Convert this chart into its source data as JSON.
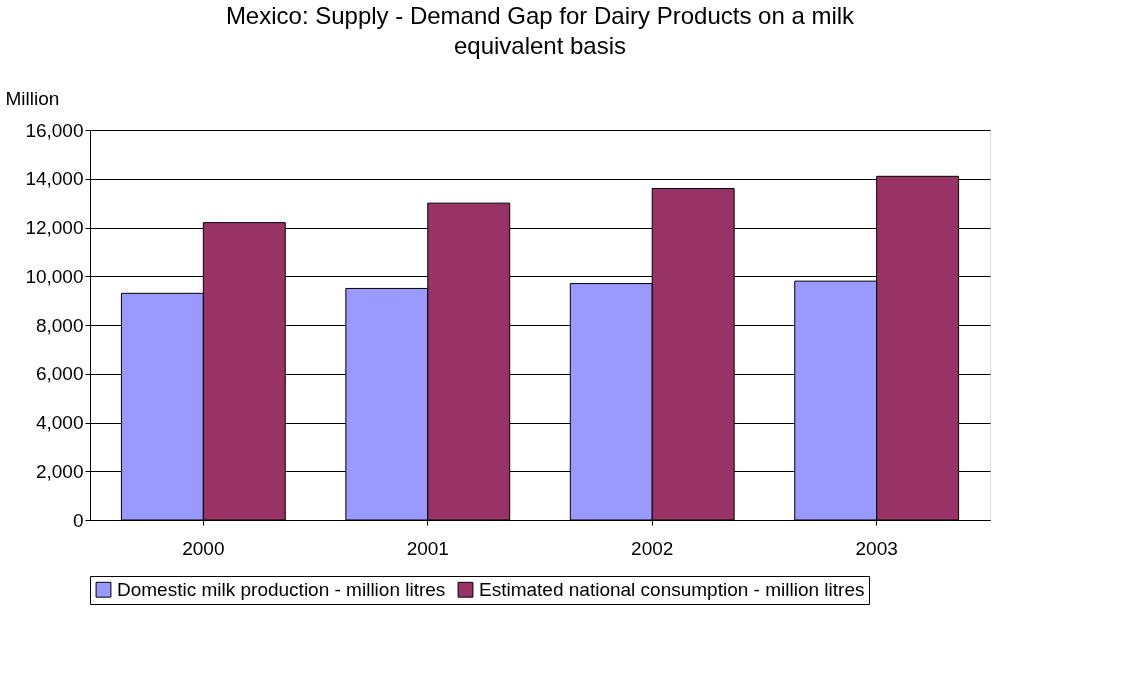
{
  "chart_data": {
    "type": "bar",
    "title": "Mexico: Supply - Demand Gap for Dairy Products on a milk equivalent basis",
    "ylabel": "Million",
    "categories": [
      "2000",
      "2001",
      "2002",
      "2003"
    ],
    "series": [
      {
        "name": "Domestic milk production - million litres",
        "color": "#9999ff",
        "values": [
          9300,
          9500,
          9700,
          9800
        ]
      },
      {
        "name": "Estimated national consumption - million litres",
        "color": "#993366",
        "values": [
          12200,
          13000,
          13600,
          14100
        ]
      }
    ],
    "ylim": [
      0,
      16000
    ],
    "yticks": [
      {
        "value": 0,
        "label": "0"
      },
      {
        "value": 2000,
        "label": "2,000"
      },
      {
        "value": 4000,
        "label": "4,000"
      },
      {
        "value": 6000,
        "label": "6,000"
      },
      {
        "value": 8000,
        "label": "8,000"
      },
      {
        "value": 10000,
        "label": "10,000"
      },
      {
        "value": 12000,
        "label": "12,000"
      },
      {
        "value": 14000,
        "label": "14,000"
      },
      {
        "value": 16000,
        "label": "16,000"
      }
    ],
    "grid": "y",
    "legend": "bottom"
  }
}
